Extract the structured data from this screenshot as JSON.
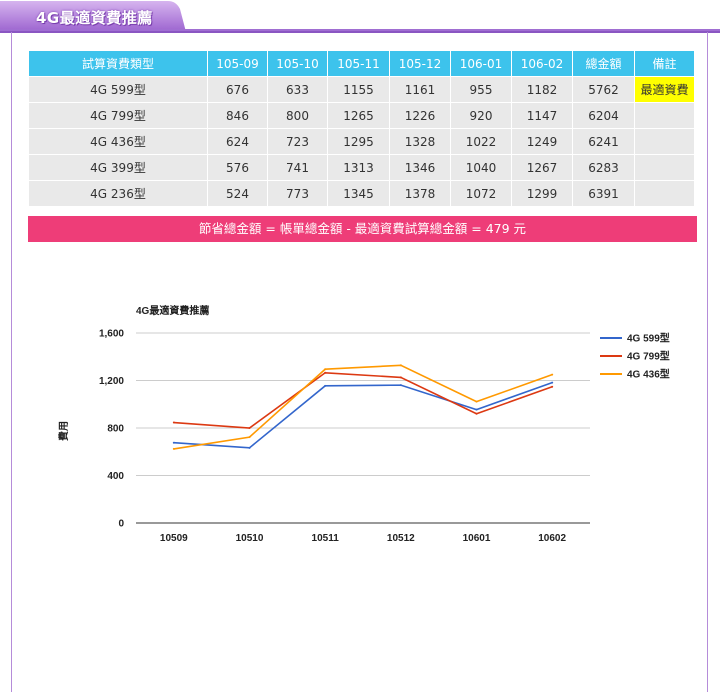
{
  "header": {
    "tab_title": "4G最適資費推薦"
  },
  "table": {
    "headers": [
      "試算資費類型",
      "105-09",
      "105-10",
      "105-11",
      "105-12",
      "106-01",
      "106-02",
      "總金額",
      "備註"
    ],
    "rows": [
      {
        "plan": "4G 599型",
        "months": [
          "676",
          "633",
          "1155",
          "1161",
          "955",
          "1182"
        ],
        "total": "5762",
        "note": "最適資費"
      },
      {
        "plan": "4G 799型",
        "months": [
          "846",
          "800",
          "1265",
          "1226",
          "920",
          "1147"
        ],
        "total": "6204",
        "note": ""
      },
      {
        "plan": "4G 436型",
        "months": [
          "624",
          "723",
          "1295",
          "1328",
          "1022",
          "1249"
        ],
        "total": "6241",
        "note": ""
      },
      {
        "plan": "4G 399型",
        "months": [
          "576",
          "741",
          "1313",
          "1346",
          "1040",
          "1267"
        ],
        "total": "6283",
        "note": ""
      },
      {
        "plan": "4G 236型",
        "months": [
          "524",
          "773",
          "1345",
          "1378",
          "1072",
          "1299"
        ],
        "total": "6391",
        "note": ""
      }
    ],
    "highlight_color": "#ffff00",
    "header_color": "#3dc3ec"
  },
  "savings": {
    "text": "節省總金額 = 帳單總金額 - 最適資費試算總金額 = 479 元",
    "color": "#ee3d78"
  },
  "chart_data": {
    "type": "line",
    "title": "4G最適資費推薦",
    "ylabel": "費用",
    "xlabel": "",
    "categories": [
      "10509",
      "10510",
      "10511",
      "10512",
      "10601",
      "10602"
    ],
    "ylim": [
      0,
      1600
    ],
    "yticks": [
      "0",
      "400",
      "800",
      "1,200",
      "1,600"
    ],
    "ytick_values": [
      0,
      400,
      800,
      1200,
      1600
    ],
    "grid": true,
    "legend_position": "right",
    "series": [
      {
        "name": "4G 599型",
        "color": "#3366cc",
        "values": [
          676,
          633,
          1155,
          1161,
          955,
          1182
        ]
      },
      {
        "name": "4G 799型",
        "color": "#dc3912",
        "values": [
          846,
          800,
          1265,
          1226,
          920,
          1147
        ]
      },
      {
        "name": "4G 436型",
        "color": "#ff9900",
        "values": [
          624,
          723,
          1295,
          1328,
          1022,
          1249
        ]
      }
    ]
  }
}
